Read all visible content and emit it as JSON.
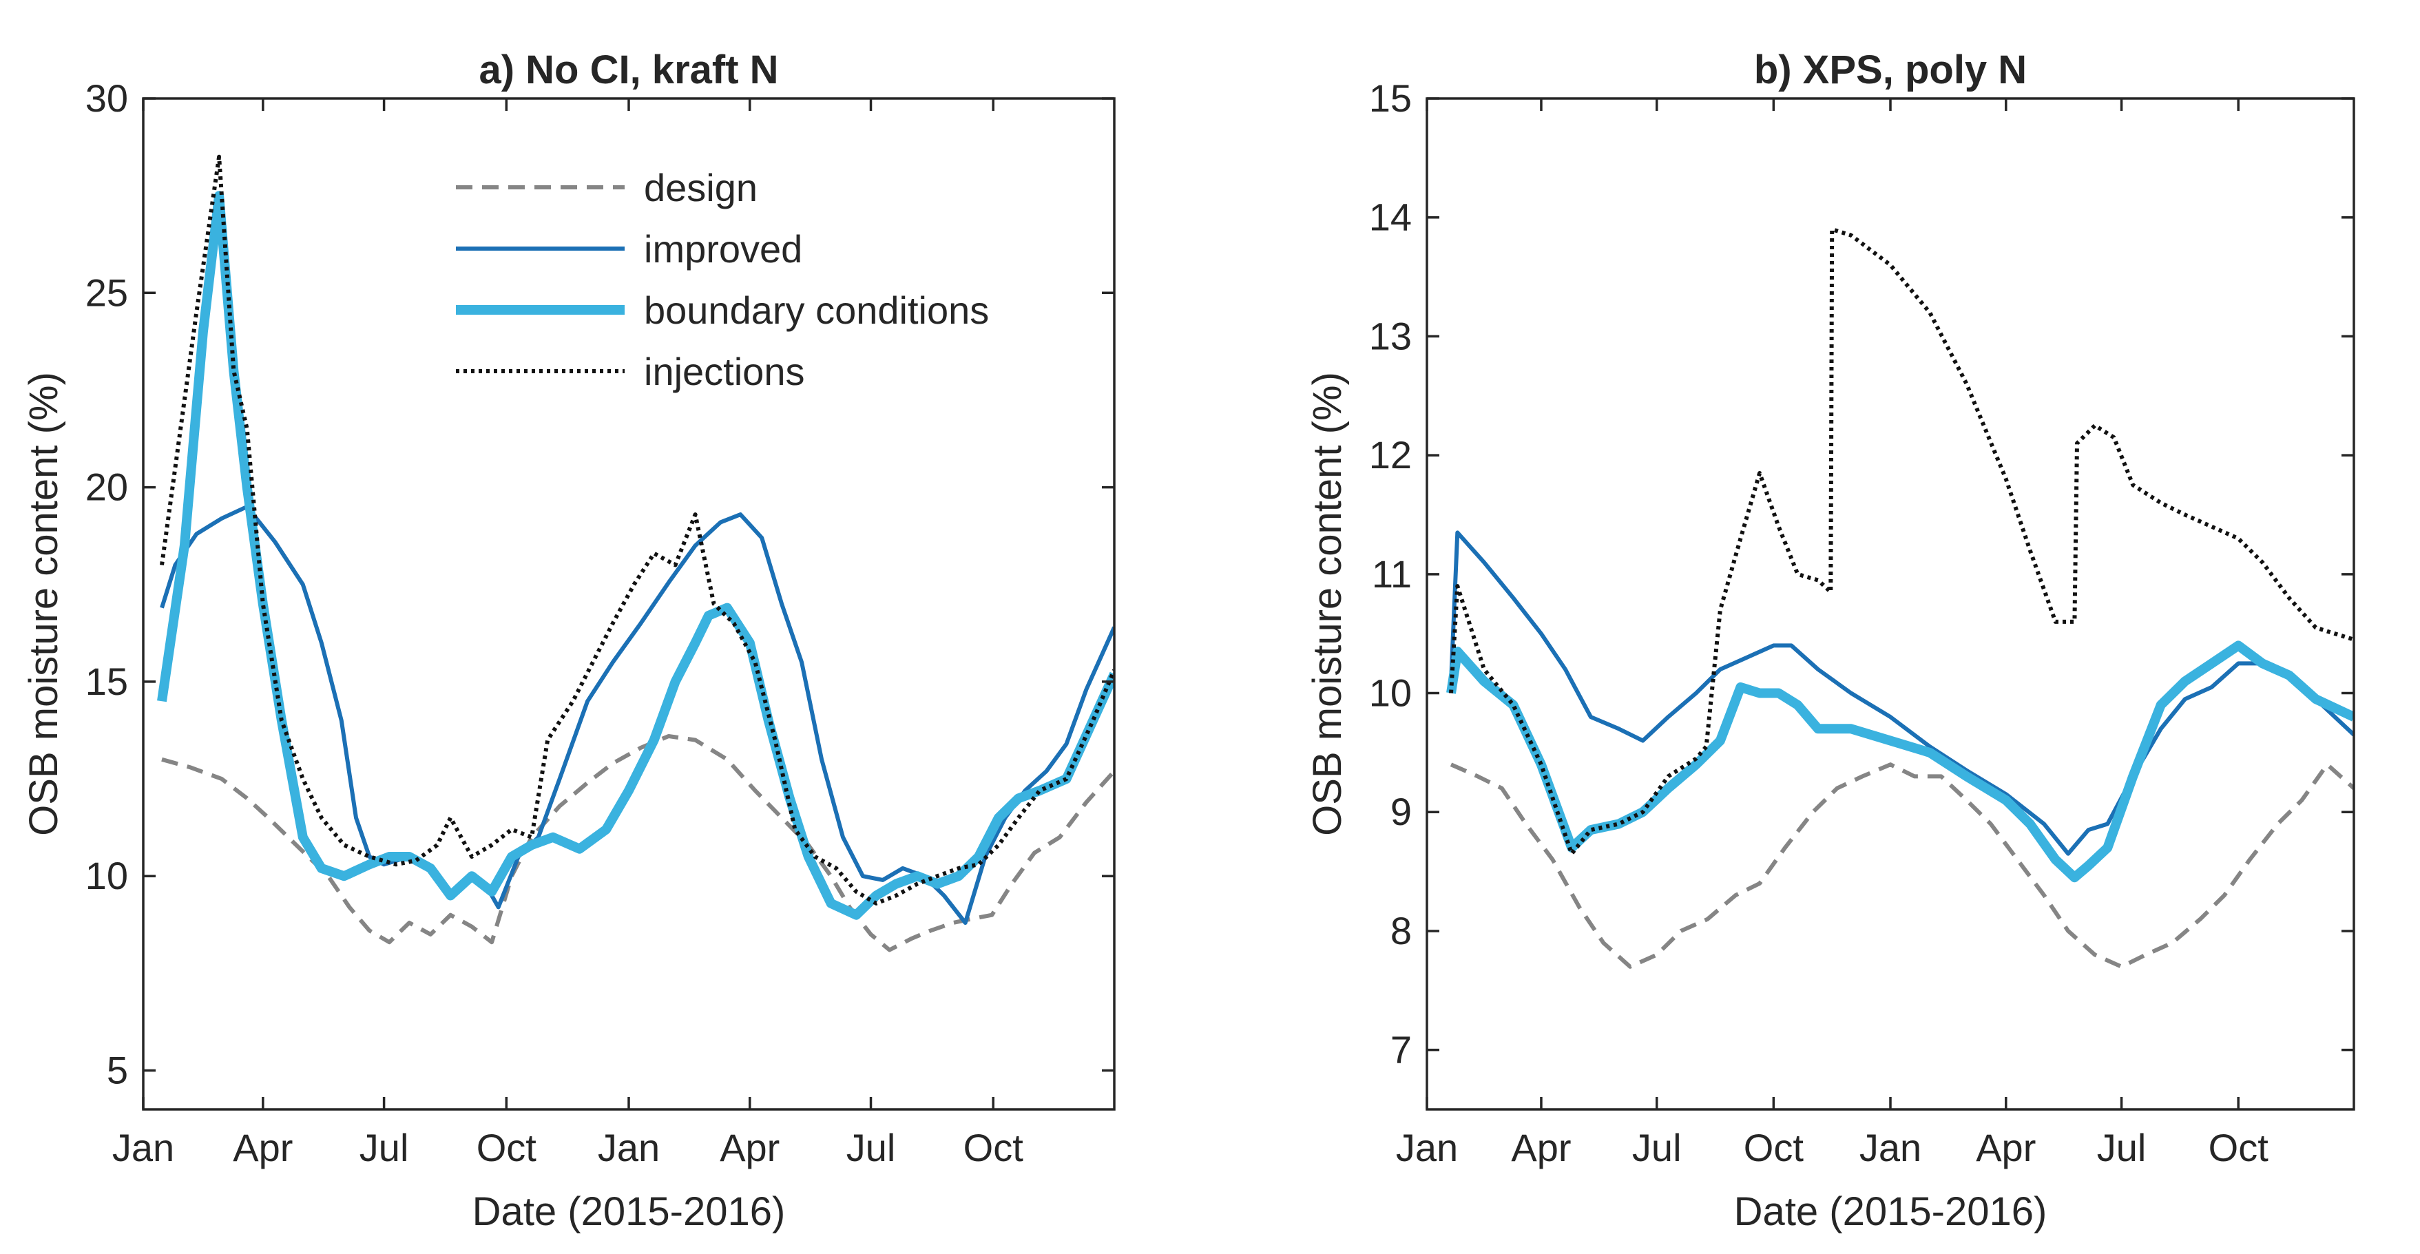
{
  "colors": {
    "design": "#858585",
    "improved": "#1b70b5",
    "boundary": "#3ab2df",
    "injections": "#111111",
    "axes": "#262626"
  },
  "chart_data": [
    {
      "type": "line",
      "title": "a) No CI, kraft N",
      "xlabel": "Date (2015-2016)",
      "ylabel": "OSB moisture content (%)",
      "ylim": [
        4,
        30
      ],
      "xlim": [
        "2015-01-01",
        "2016-12-31"
      ],
      "x_ticks": [
        {
          "date": "2015-01-01",
          "label": "Jan"
        },
        {
          "date": "2015-04-01",
          "label": "Apr"
        },
        {
          "date": "2015-07-01",
          "label": "Jul"
        },
        {
          "date": "2015-10-01",
          "label": "Oct"
        },
        {
          "date": "2016-01-01",
          "label": "Jan"
        },
        {
          "date": "2016-04-01",
          "label": "Apr"
        },
        {
          "date": "2016-07-01",
          "label": "Jul"
        },
        {
          "date": "2016-10-01",
          "label": "Oct"
        }
      ],
      "y_ticks": [
        5,
        10,
        15,
        20,
        25,
        30
      ],
      "legend": {
        "placement": "top-center",
        "entries": [
          "design",
          "improved",
          "boundary conditions",
          "injections"
        ]
      },
      "series": [
        {
          "name": "design",
          "style": "dashed",
          "x": [
            "2015-01-15",
            "2015-02-05",
            "2015-03-01",
            "2015-03-20",
            "2015-04-05",
            "2015-04-20",
            "2015-05-05",
            "2015-05-20",
            "2015-06-05",
            "2015-06-20",
            "2015-07-05",
            "2015-07-20",
            "2015-08-05",
            "2015-08-20",
            "2015-09-05",
            "2015-09-20",
            "2015-10-05",
            "2015-10-20",
            "2015-11-10",
            "2015-12-01",
            "2015-12-20",
            "2016-01-10",
            "2016-01-31",
            "2016-02-20",
            "2016-03-15",
            "2016-04-05",
            "2016-04-25",
            "2016-05-15",
            "2016-06-01",
            "2016-06-15",
            "2016-07-01",
            "2016-07-15",
            "2016-08-01",
            "2016-08-15",
            "2016-09-01",
            "2016-09-15",
            "2016-09-30",
            "2016-10-15",
            "2016-11-01",
            "2016-11-20",
            "2016-12-10",
            "2016-12-31"
          ],
          "y": [
            13.0,
            12.8,
            12.5,
            12.0,
            11.5,
            11.0,
            10.5,
            10.0,
            9.2,
            8.6,
            8.3,
            8.8,
            8.5,
            9.0,
            8.7,
            8.3,
            10.0,
            11.0,
            11.8,
            12.4,
            12.9,
            13.3,
            13.6,
            13.5,
            13.0,
            12.2,
            11.5,
            10.8,
            10.0,
            9.2,
            8.5,
            8.1,
            8.4,
            8.6,
            8.8,
            8.9,
            9.0,
            9.8,
            10.6,
            11.0,
            11.9,
            12.7
          ]
        },
        {
          "name": "improved",
          "style": "solid",
          "x": [
            "2015-01-15",
            "2015-01-25",
            "2015-02-10",
            "2015-03-01",
            "2015-03-20",
            "2015-04-10",
            "2015-05-01",
            "2015-05-15",
            "2015-05-30",
            "2015-06-10",
            "2015-06-20",
            "2015-07-01",
            "2015-07-20",
            "2015-08-05",
            "2015-08-20",
            "2015-09-05",
            "2015-09-15",
            "2015-09-25",
            "2015-10-10",
            "2015-10-25",
            "2015-11-10",
            "2015-12-01",
            "2015-12-20",
            "2016-01-10",
            "2016-02-01",
            "2016-02-20",
            "2016-03-10",
            "2016-03-25",
            "2016-04-10",
            "2016-04-25",
            "2016-05-10",
            "2016-05-25",
            "2016-06-10",
            "2016-06-25",
            "2016-07-10",
            "2016-07-25",
            "2016-08-10",
            "2016-08-25",
            "2016-09-10",
            "2016-09-25",
            "2016-10-10",
            "2016-10-25",
            "2016-11-10",
            "2016-11-25",
            "2016-12-10",
            "2016-12-31"
          ],
          "y": [
            16.9,
            18.0,
            18.8,
            19.2,
            19.5,
            18.6,
            17.5,
            16.0,
            14.0,
            11.5,
            10.5,
            10.3,
            10.5,
            10.2,
            9.5,
            10.0,
            9.8,
            9.2,
            10.5,
            11.0,
            12.5,
            14.5,
            15.5,
            16.5,
            17.6,
            18.5,
            19.1,
            19.3,
            18.7,
            17.0,
            15.5,
            13.0,
            11.0,
            10.0,
            9.9,
            10.2,
            10.0,
            9.5,
            8.8,
            10.5,
            11.5,
            12.2,
            12.7,
            13.4,
            14.8,
            16.4
          ]
        },
        {
          "name": "boundary conditions",
          "style": "thick",
          "x": [
            "2015-01-15",
            "2015-02-01",
            "2015-02-15",
            "2015-02-27",
            "2015-03-10",
            "2015-03-20",
            "2015-04-01",
            "2015-04-15",
            "2015-05-01",
            "2015-05-15",
            "2015-06-01",
            "2015-06-20",
            "2015-07-05",
            "2015-07-20",
            "2015-08-05",
            "2015-08-20",
            "2015-09-05",
            "2015-09-20",
            "2015-10-05",
            "2015-10-20",
            "2015-11-05",
            "2015-11-25",
            "2015-12-15",
            "2016-01-01",
            "2016-01-20",
            "2016-02-05",
            "2016-02-20",
            "2016-03-01",
            "2016-03-15",
            "2016-04-01",
            "2016-04-15",
            "2016-05-01",
            "2016-05-15",
            "2016-06-01",
            "2016-06-20",
            "2016-07-05",
            "2016-07-20",
            "2016-08-05",
            "2016-08-20",
            "2016-09-05",
            "2016-09-20",
            "2016-10-05",
            "2016-10-20",
            "2016-11-05",
            "2016-11-25",
            "2016-12-15",
            "2016-12-31"
          ],
          "y": [
            14.5,
            18.5,
            24.0,
            27.5,
            23.0,
            20.0,
            17.0,
            14.0,
            11.0,
            10.2,
            10.0,
            10.3,
            10.5,
            10.5,
            10.2,
            9.5,
            10.0,
            9.6,
            10.5,
            10.8,
            11.0,
            10.7,
            11.2,
            12.2,
            13.5,
            15.0,
            16.0,
            16.7,
            16.9,
            16.0,
            14.0,
            12.0,
            10.5,
            9.3,
            9.0,
            9.5,
            9.8,
            10.0,
            9.8,
            10.0,
            10.5,
            11.5,
            12.0,
            12.2,
            12.5,
            14.0,
            15.2
          ]
        },
        {
          "name": "injections",
          "style": "dotted",
          "x": [
            "2015-01-15",
            "2015-01-25",
            "2015-02-10",
            "2015-02-27",
            "2015-03-10",
            "2015-03-20",
            "2015-04-01",
            "2015-04-15",
            "2015-05-01",
            "2015-05-15",
            "2015-06-01",
            "2015-06-20",
            "2015-07-10",
            "2015-07-25",
            "2015-08-10",
            "2015-08-20",
            "2015-09-05",
            "2015-09-20",
            "2015-10-05",
            "2015-10-20",
            "2015-11-01",
            "2015-11-20",
            "2015-12-05",
            "2015-12-20",
            "2016-01-05",
            "2016-01-20",
            "2016-02-05",
            "2016-02-20",
            "2016-03-05",
            "2016-03-20",
            "2016-04-05",
            "2016-04-20",
            "2016-05-05",
            "2016-05-20",
            "2016-06-05",
            "2016-06-20",
            "2016-07-05",
            "2016-07-20",
            "2016-08-05",
            "2016-08-20",
            "2016-09-05",
            "2016-09-20",
            "2016-10-05",
            "2016-10-20",
            "2016-11-05",
            "2016-11-25",
            "2016-12-15",
            "2016-12-31"
          ],
          "y": [
            18.0,
            20.5,
            24.5,
            28.5,
            23.0,
            21.5,
            17.0,
            14.0,
            12.5,
            11.5,
            10.8,
            10.5,
            10.3,
            10.4,
            10.8,
            11.5,
            10.5,
            10.8,
            11.2,
            11.0,
            13.5,
            14.5,
            15.5,
            16.5,
            17.5,
            18.3,
            18.0,
            19.3,
            17.0,
            16.5,
            15.5,
            13.5,
            11.2,
            10.5,
            10.2,
            9.6,
            9.3,
            9.5,
            9.8,
            10.0,
            10.2,
            10.3,
            10.8,
            11.5,
            12.2,
            12.5,
            14.0,
            15.3
          ]
        }
      ]
    },
    {
      "type": "line",
      "title": "b) XPS, poly N",
      "xlabel": "Date (2015-2016)",
      "ylabel": "OSB moisture content (%)",
      "ylim": [
        6.5,
        15
      ],
      "xlim": [
        "2015-01-01",
        "2016-12-31"
      ],
      "x_ticks": [
        {
          "date": "2015-01-01",
          "label": "Jan"
        },
        {
          "date": "2015-04-01",
          "label": "Apr"
        },
        {
          "date": "2015-07-01",
          "label": "Jul"
        },
        {
          "date": "2015-10-01",
          "label": "Oct"
        },
        {
          "date": "2016-01-01",
          "label": "Jan"
        },
        {
          "date": "2016-04-01",
          "label": "Apr"
        },
        {
          "date": "2016-07-01",
          "label": "Jul"
        },
        {
          "date": "2016-10-01",
          "label": "Oct"
        }
      ],
      "y_ticks": [
        7,
        8,
        9,
        10,
        11,
        12,
        13,
        14,
        15
      ],
      "series": [
        {
          "name": "design",
          "style": "dashed",
          "x": [
            "2015-01-20",
            "2015-02-10",
            "2015-03-01",
            "2015-03-20",
            "2015-04-10",
            "2015-05-01",
            "2015-05-20",
            "2015-06-10",
            "2015-07-01",
            "2015-07-20",
            "2015-08-10",
            "2015-09-01",
            "2015-09-20",
            "2015-10-10",
            "2015-11-01",
            "2015-11-20",
            "2015-12-10",
            "2016-01-01",
            "2016-01-20",
            "2016-02-10",
            "2016-03-01",
            "2016-03-20",
            "2016-04-10",
            "2016-05-01",
            "2016-05-20",
            "2016-06-10",
            "2016-07-01",
            "2016-07-20",
            "2016-08-10",
            "2016-09-01",
            "2016-09-20",
            "2016-10-10",
            "2016-11-01",
            "2016-11-20",
            "2016-12-10",
            "2016-12-31"
          ],
          "y": [
            9.4,
            9.3,
            9.2,
            8.9,
            8.6,
            8.2,
            7.9,
            7.7,
            7.8,
            8.0,
            8.1,
            8.3,
            8.4,
            8.7,
            9.0,
            9.2,
            9.3,
            9.4,
            9.3,
            9.3,
            9.1,
            8.9,
            8.6,
            8.3,
            8.0,
            7.8,
            7.7,
            7.8,
            7.9,
            8.1,
            8.3,
            8.6,
            8.9,
            9.1,
            9.4,
            9.2
          ]
        },
        {
          "name": "improved",
          "style": "solid",
          "x": [
            "2015-01-20",
            "2015-01-25",
            "2015-02-15",
            "2015-03-10",
            "2015-04-01",
            "2015-04-20",
            "2015-05-10",
            "2015-06-01",
            "2015-06-20",
            "2015-07-10",
            "2015-08-01",
            "2015-08-20",
            "2015-09-10",
            "2015-10-01",
            "2015-10-15",
            "2015-11-05",
            "2015-12-01",
            "2016-01-01",
            "2016-02-01",
            "2016-03-01",
            "2016-04-01",
            "2016-05-01",
            "2016-05-20",
            "2016-06-05",
            "2016-06-20",
            "2016-07-10",
            "2016-08-01",
            "2016-08-20",
            "2016-09-10",
            "2016-10-01",
            "2016-10-20",
            "2016-11-10",
            "2016-12-01",
            "2016-12-31"
          ],
          "y": [
            10.1,
            11.35,
            11.1,
            10.8,
            10.5,
            10.2,
            9.8,
            9.7,
            9.6,
            9.8,
            10.0,
            10.2,
            10.3,
            10.4,
            10.4,
            10.2,
            10.0,
            9.8,
            9.55,
            9.35,
            9.15,
            8.9,
            8.65,
            8.85,
            8.9,
            9.3,
            9.7,
            9.95,
            10.05,
            10.25,
            10.25,
            10.15,
            9.95,
            9.65
          ]
        },
        {
          "name": "boundary conditions",
          "style": "thick",
          "x": [
            "2015-01-20",
            "2015-01-25",
            "2015-02-15",
            "2015-03-10",
            "2015-04-01",
            "2015-04-25",
            "2015-05-10",
            "2015-06-01",
            "2015-06-20",
            "2015-07-10",
            "2015-08-01",
            "2015-08-20",
            "2015-09-05",
            "2015-09-20",
            "2015-10-05",
            "2015-10-20",
            "2015-11-05",
            "2015-12-01",
            "2016-01-01",
            "2016-02-01",
            "2016-03-01",
            "2016-04-01",
            "2016-04-20",
            "2016-05-10",
            "2016-05-25",
            "2016-06-05",
            "2016-06-20",
            "2016-07-10",
            "2016-08-01",
            "2016-08-20",
            "2016-09-10",
            "2016-10-01",
            "2016-10-20",
            "2016-11-10",
            "2016-12-01",
            "2016-12-31"
          ],
          "y": [
            10.0,
            10.35,
            10.1,
            9.9,
            9.4,
            8.7,
            8.85,
            8.9,
            9.0,
            9.2,
            9.4,
            9.6,
            10.05,
            10.0,
            10.0,
            9.9,
            9.7,
            9.7,
            9.6,
            9.5,
            9.3,
            9.1,
            8.9,
            8.6,
            8.45,
            8.55,
            8.7,
            9.3,
            9.9,
            10.1,
            10.25,
            10.4,
            10.25,
            10.15,
            9.95,
            9.8
          ]
        },
        {
          "name": "injections",
          "style": "dotted",
          "x": [
            "2015-01-20",
            "2015-01-25",
            "2015-02-15",
            "2015-03-10",
            "2015-04-01",
            "2015-04-25",
            "2015-05-10",
            "2015-06-01",
            "2015-06-20",
            "2015-07-10",
            "2015-08-01",
            "2015-08-09",
            "2015-08-20",
            "2015-09-05",
            "2015-09-20",
            "2015-10-05",
            "2015-10-20",
            "2015-11-05",
            "2015-11-15",
            "2015-11-16",
            "2015-12-01",
            "2016-01-01",
            "2016-02-01",
            "2016-03-01",
            "2016-04-01",
            "2016-04-20",
            "2016-05-10",
            "2016-05-25",
            "2016-05-27",
            "2016-06-10",
            "2016-06-25",
            "2016-07-10",
            "2016-08-01",
            "2016-08-20",
            "2016-09-10",
            "2016-10-01",
            "2016-10-20",
            "2016-11-10",
            "2016-12-01",
            "2016-12-31"
          ],
          "y": [
            10.0,
            10.9,
            10.2,
            9.9,
            9.4,
            8.65,
            8.85,
            8.9,
            9.0,
            9.3,
            9.45,
            9.55,
            10.7,
            11.3,
            11.85,
            11.4,
            11.0,
            10.95,
            10.85,
            13.9,
            13.85,
            13.6,
            13.2,
            12.6,
            11.8,
            11.2,
            10.6,
            10.6,
            12.1,
            12.25,
            12.15,
            11.75,
            11.6,
            11.5,
            11.4,
            11.3,
            11.1,
            10.8,
            10.55,
            10.45
          ]
        }
      ]
    }
  ]
}
